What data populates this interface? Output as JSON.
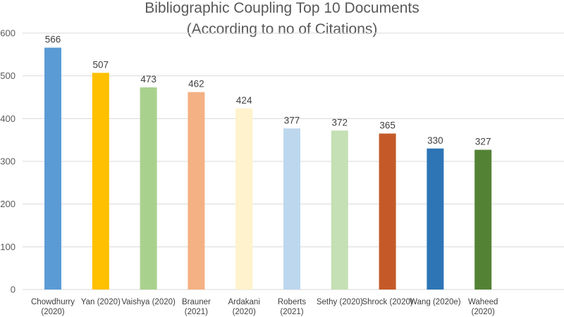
{
  "chart_data": {
    "type": "bar",
    "title": "Bibliographic Coupling Top 10 Documents (According to no of Citations)",
    "title_lines": [
      "Bibliographic Coupling Top 10 Documents",
      "(According to no of Citations)"
    ],
    "categories": [
      [
        "Chowdhurry",
        "(2020)"
      ],
      [
        "Yan (2020)"
      ],
      [
        "Vaishya (2020)"
      ],
      [
        "Brauner",
        "(2021)"
      ],
      [
        "Ardakani",
        "(2020)"
      ],
      [
        "Roberts",
        "(2021)"
      ],
      [
        "Sethy (2020)"
      ],
      [
        "Shrock (2020)"
      ],
      [
        "Wang (2020e)"
      ],
      [
        "Waheed",
        "(2020)"
      ]
    ],
    "values": [
      566,
      507,
      473,
      462,
      424,
      377,
      372,
      365,
      330,
      327
    ],
    "colors": [
      "#5b9bd5",
      "#ffc000",
      "#a9d18e",
      "#f4b183",
      "#fff2cc",
      "#bdd7ee",
      "#c5e0b4",
      "#c55a28",
      "#2e75b6",
      "#548235"
    ],
    "ylim": [
      0,
      600
    ],
    "yticks": [
      0,
      100,
      200,
      300,
      400,
      500,
      600
    ],
    "grid": true,
    "legend": "none",
    "data_labels": true
  }
}
